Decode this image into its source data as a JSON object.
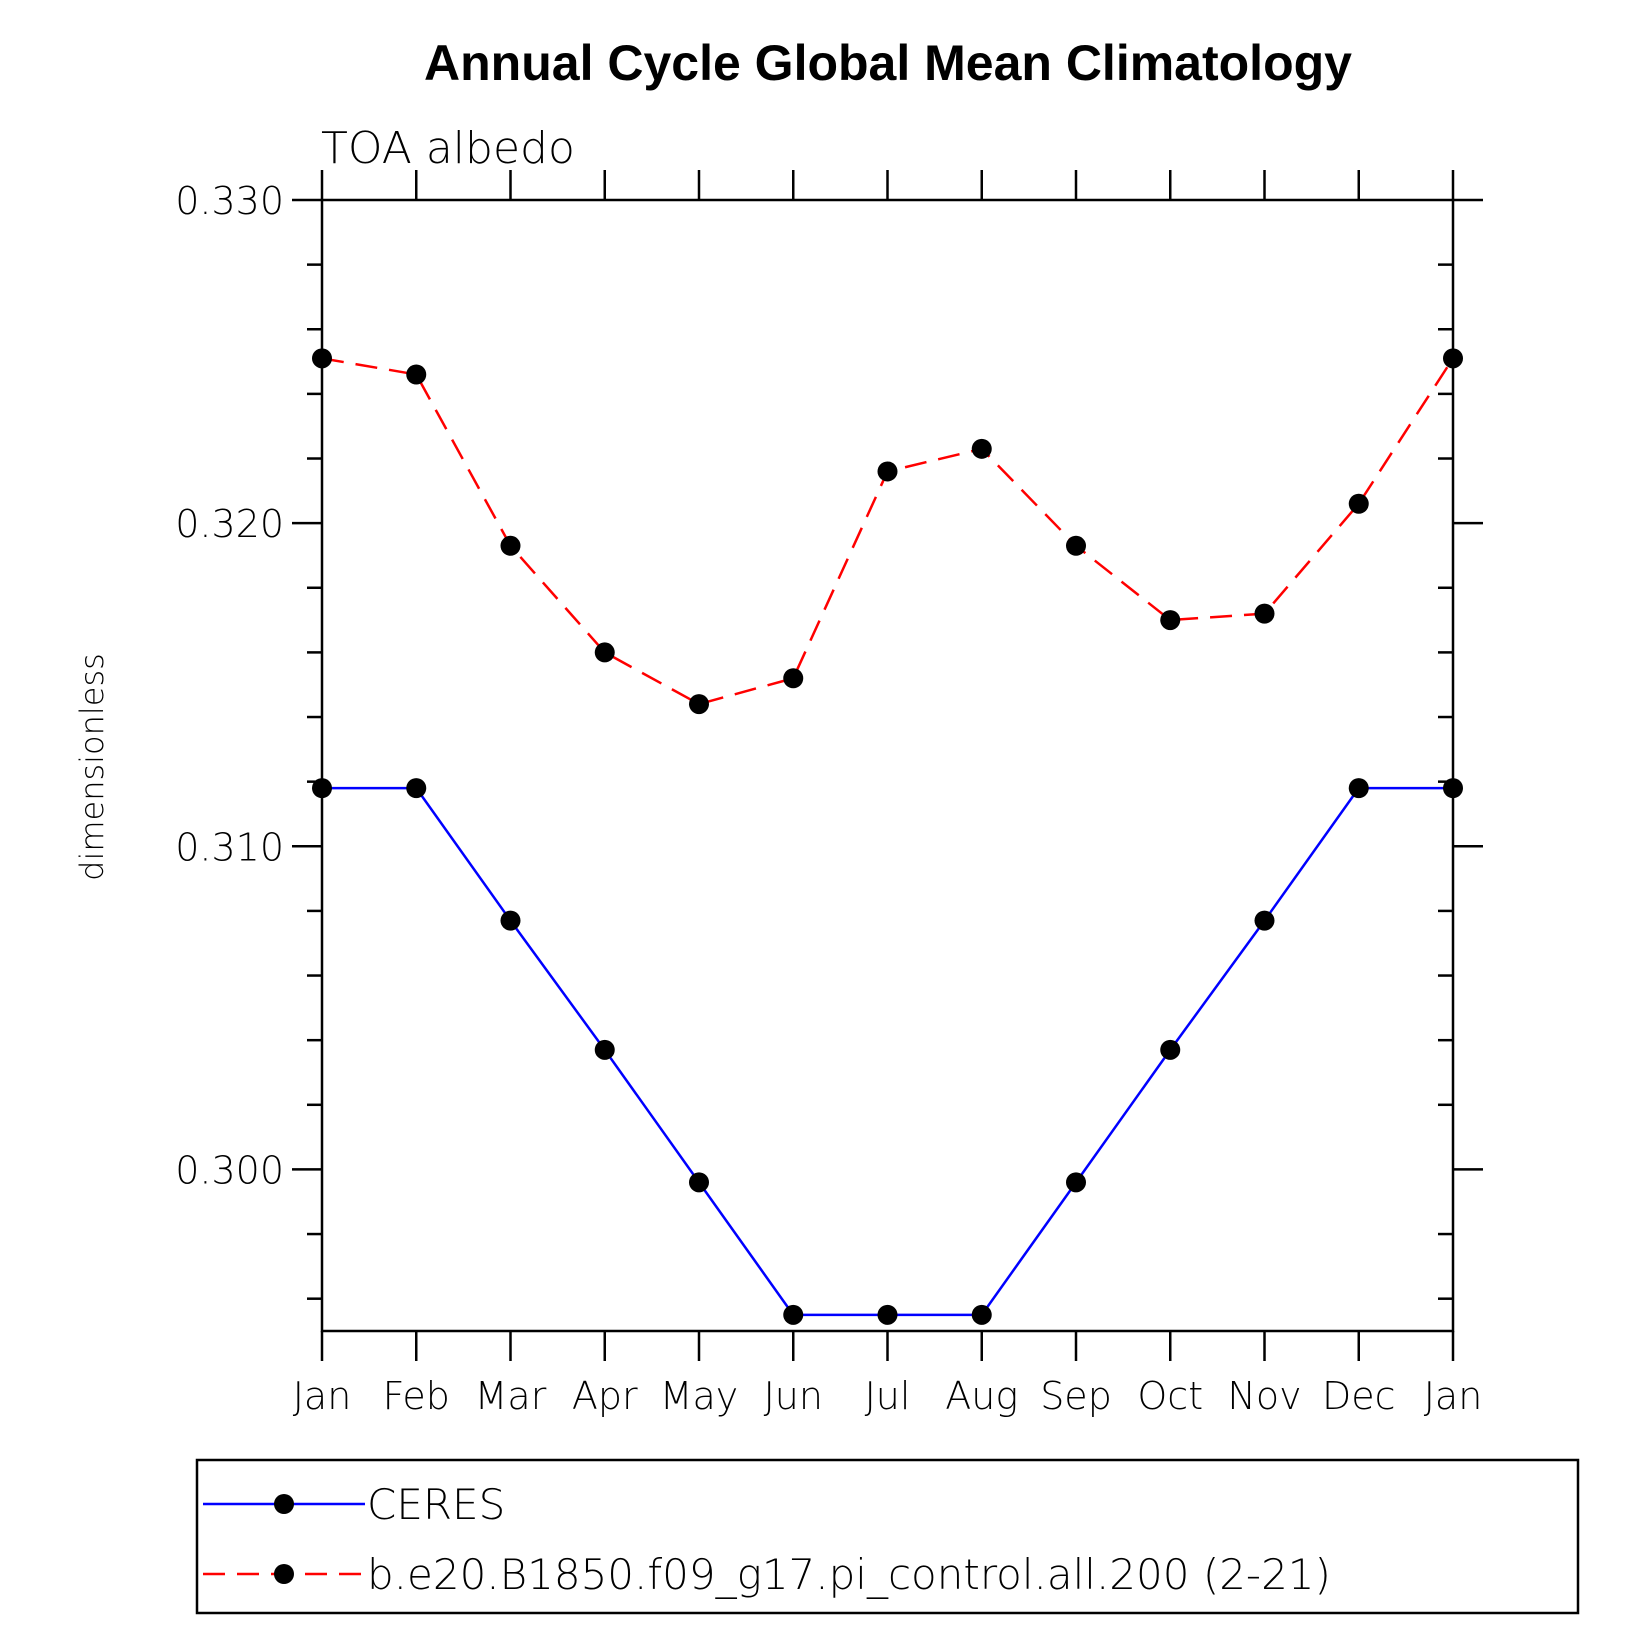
{
  "chart_data": {
    "type": "line",
    "title": "Annual Cycle Global Mean Climatology",
    "subtitle": "TOA albedo",
    "ylabel": "dimensionless",
    "xlabel": "",
    "categories": [
      "Jan",
      "Feb",
      "Mar",
      "Apr",
      "May",
      "Jun",
      "Jul",
      "Aug",
      "Sep",
      "Oct",
      "Nov",
      "Dec",
      "Jan"
    ],
    "ylim": [
      0.295,
      0.33
    ],
    "yticks": [
      0.3,
      0.31,
      0.32,
      0.33
    ],
    "ytick_labels": [
      "0.300",
      "0.310",
      "0.320",
      "0.330"
    ],
    "grid": false,
    "legend_position": "bottom",
    "series": [
      {
        "name": "CERES",
        "color": "#0000ff",
        "dash": "solid",
        "marker": "circle",
        "values": [
          0.3118,
          0.3118,
          0.3077,
          0.3037,
          0.2996,
          0.2955,
          0.2955,
          0.2955,
          0.2996,
          0.3037,
          0.3077,
          0.3118,
          0.3118
        ]
      },
      {
        "name": "b.e20.B1850.f09_g17.pi_control.all.200 (2-21)",
        "color": "#ff0000",
        "dash": "dashed",
        "marker": "circle",
        "values": [
          0.3251,
          0.3246,
          0.3193,
          0.316,
          0.3144,
          0.3152,
          0.3216,
          0.3223,
          0.3193,
          0.317,
          0.3172,
          0.3206,
          0.3251
        ]
      }
    ]
  }
}
